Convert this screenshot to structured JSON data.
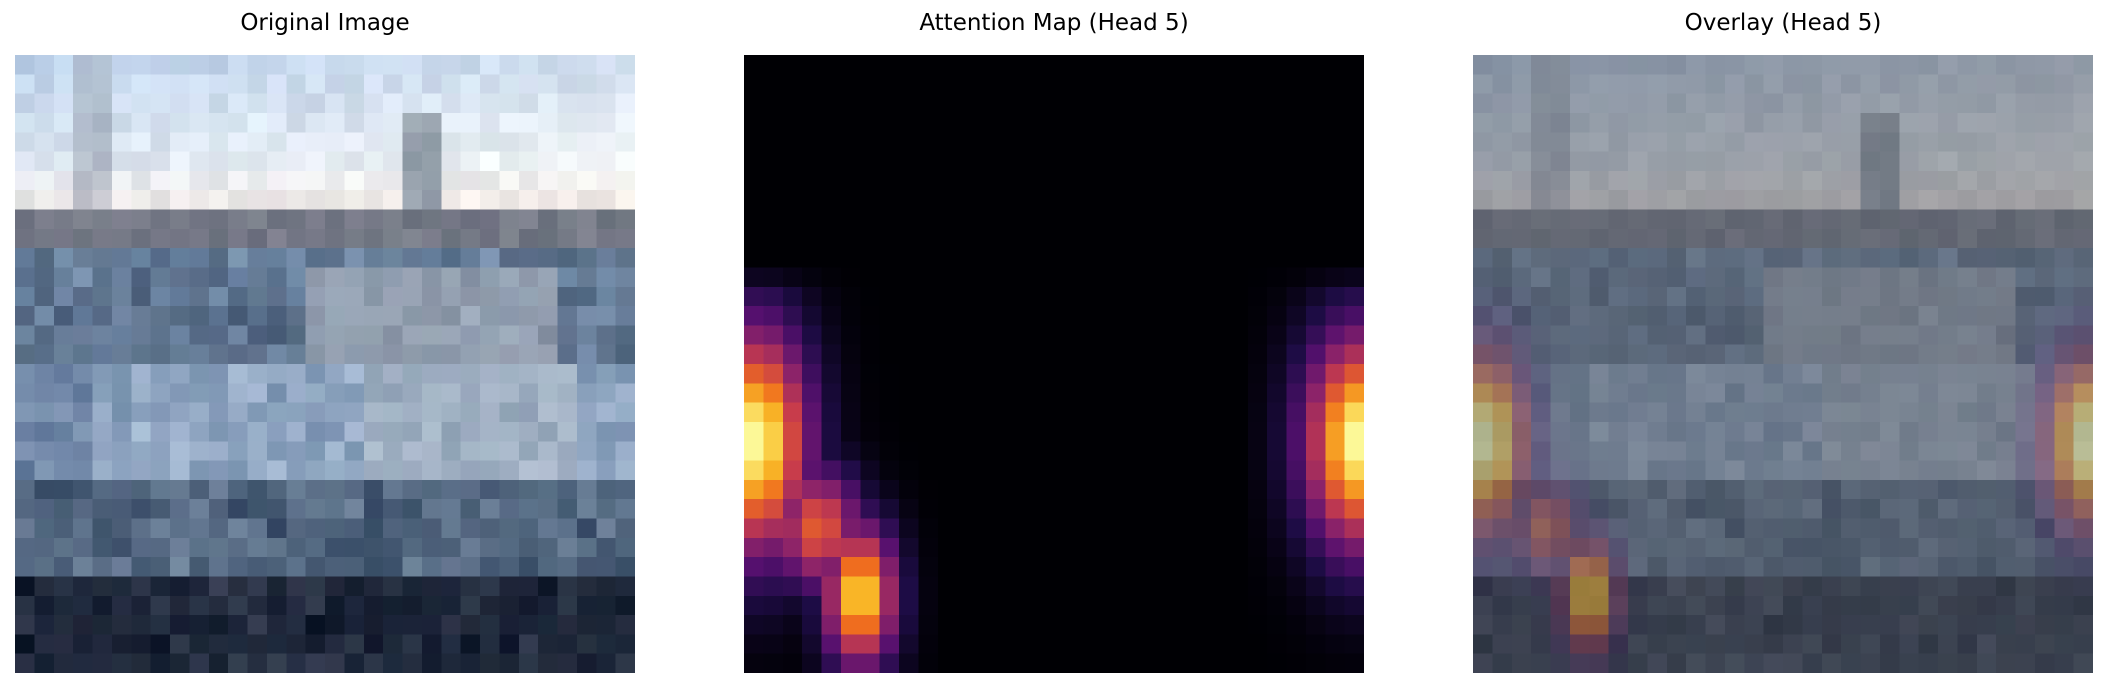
{
  "figure": {
    "panels": [
      {
        "title": "Original Image"
      },
      {
        "title": "Attention Map (Head 5)"
      },
      {
        "title": "Overlay (Head 5)"
      }
    ]
  },
  "attention": {
    "colormap": "inferno",
    "head": 5
  }
}
